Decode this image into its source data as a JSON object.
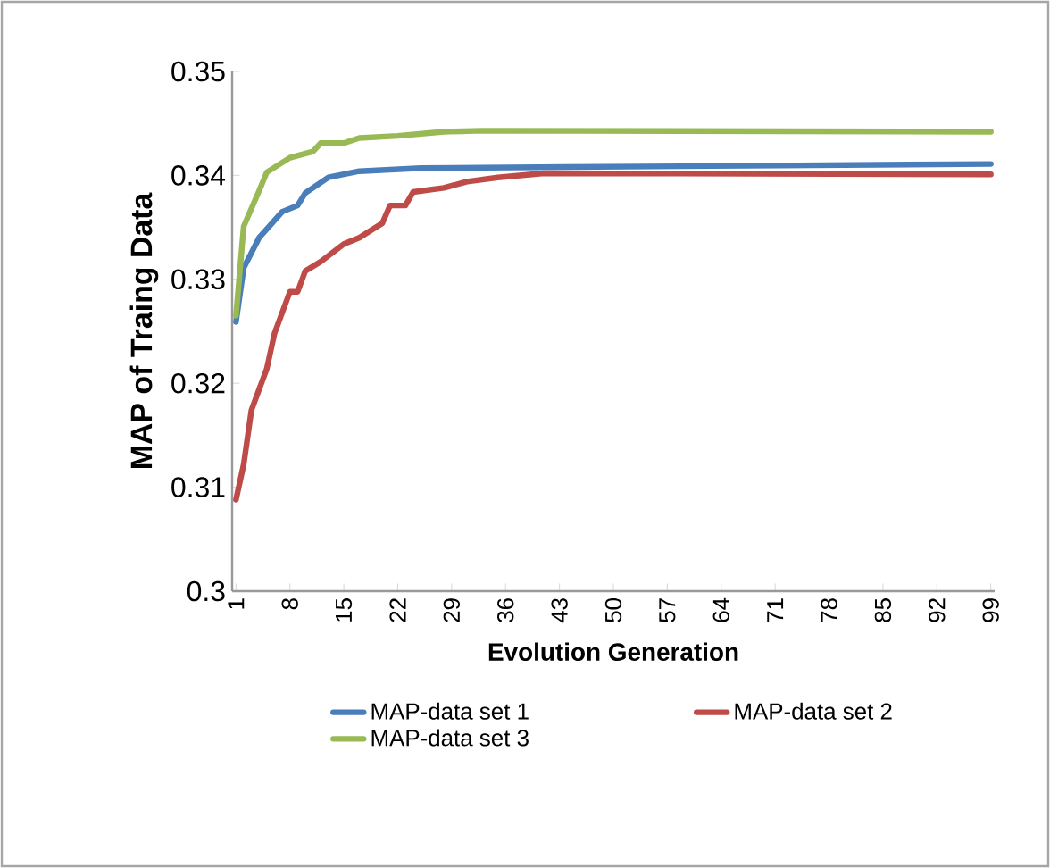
{
  "chart_data": {
    "type": "line",
    "xlabel": "Evolution Generation",
    "ylabel": "MAP of Traing Data",
    "xlim": [
      0.5,
      99.5
    ],
    "xticks": [
      1,
      8,
      15,
      22,
      29,
      36,
      43,
      50,
      57,
      64,
      71,
      78,
      85,
      92,
      99
    ],
    "ylim": [
      0.3,
      0.35
    ],
    "yticks": [
      0.3,
      0.31,
      0.32,
      0.33,
      0.34,
      0.35
    ],
    "legend": "bottom",
    "marker": "none",
    "line_style": "solid",
    "grid": false,
    "series": [
      {
        "name": "MAP-data set 1",
        "color": "#4a7ebb",
        "x": [
          1,
          2,
          4,
          7,
          9,
          10,
          11,
          13,
          17,
          25,
          44,
          99
        ],
        "values": [
          0.3259,
          0.3311,
          0.334,
          0.3365,
          0.3371,
          0.3383,
          0.3388,
          0.3398,
          0.3404,
          0.3407,
          0.3408,
          0.3411
        ]
      },
      {
        "name": "MAP-data set 2",
        "color": "#be4b48",
        "x": [
          1,
          2,
          3,
          5,
          6,
          8,
          9,
          10,
          12,
          15,
          17,
          20,
          21,
          23,
          24,
          28,
          31,
          35,
          41,
          99
        ],
        "values": [
          0.3088,
          0.3122,
          0.3174,
          0.3214,
          0.3248,
          0.3288,
          0.3288,
          0.3308,
          0.3317,
          0.3334,
          0.334,
          0.3354,
          0.3371,
          0.3371,
          0.3384,
          0.3388,
          0.3394,
          0.3398,
          0.3402,
          0.3401
        ]
      },
      {
        "name": "MAP-data set 3",
        "color": "#98b954",
        "x": [
          1,
          2,
          4,
          5,
          8,
          11,
          12,
          15,
          17,
          22,
          28,
          33,
          99
        ],
        "values": [
          0.3265,
          0.3351,
          0.3385,
          0.3403,
          0.3417,
          0.3423,
          0.3431,
          0.3431,
          0.3436,
          0.3438,
          0.3442,
          0.3443,
          0.3442
        ]
      }
    ]
  }
}
